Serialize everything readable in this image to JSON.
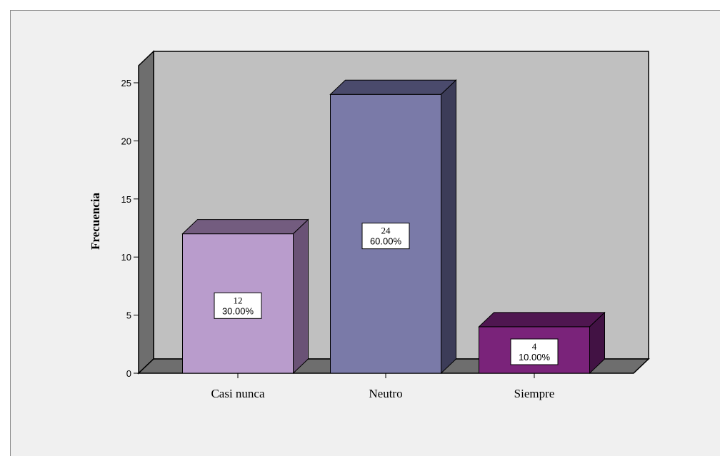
{
  "chart_data": {
    "type": "bar",
    "categories": [
      "Casi nunca",
      "Neutro",
      "Siempre"
    ],
    "values": [
      12,
      24,
      4
    ],
    "percent_labels": [
      "30.00%",
      "60.00%",
      "10.00%"
    ],
    "ylabel": "Frecuencia",
    "xlabel": "",
    "ylim": [
      0,
      25
    ],
    "yticks": [
      0,
      5,
      10,
      15,
      20,
      25
    ],
    "grid": false,
    "three_d": true,
    "bar_colors": [
      "#b99ccc",
      "#7a7aa8",
      "#7a237a"
    ],
    "bar_top_colors": [
      "#735c7f",
      "#4a4a6c",
      "#4f1650"
    ],
    "bar_side_colors": [
      "#6a5276",
      "#3c3c58",
      "#421244"
    ],
    "wall_color": "#c0c0c0",
    "side_wall_color": "#6e6e6e",
    "floor_color": "#6e6e6e",
    "background_color": "#f0f0f0"
  }
}
